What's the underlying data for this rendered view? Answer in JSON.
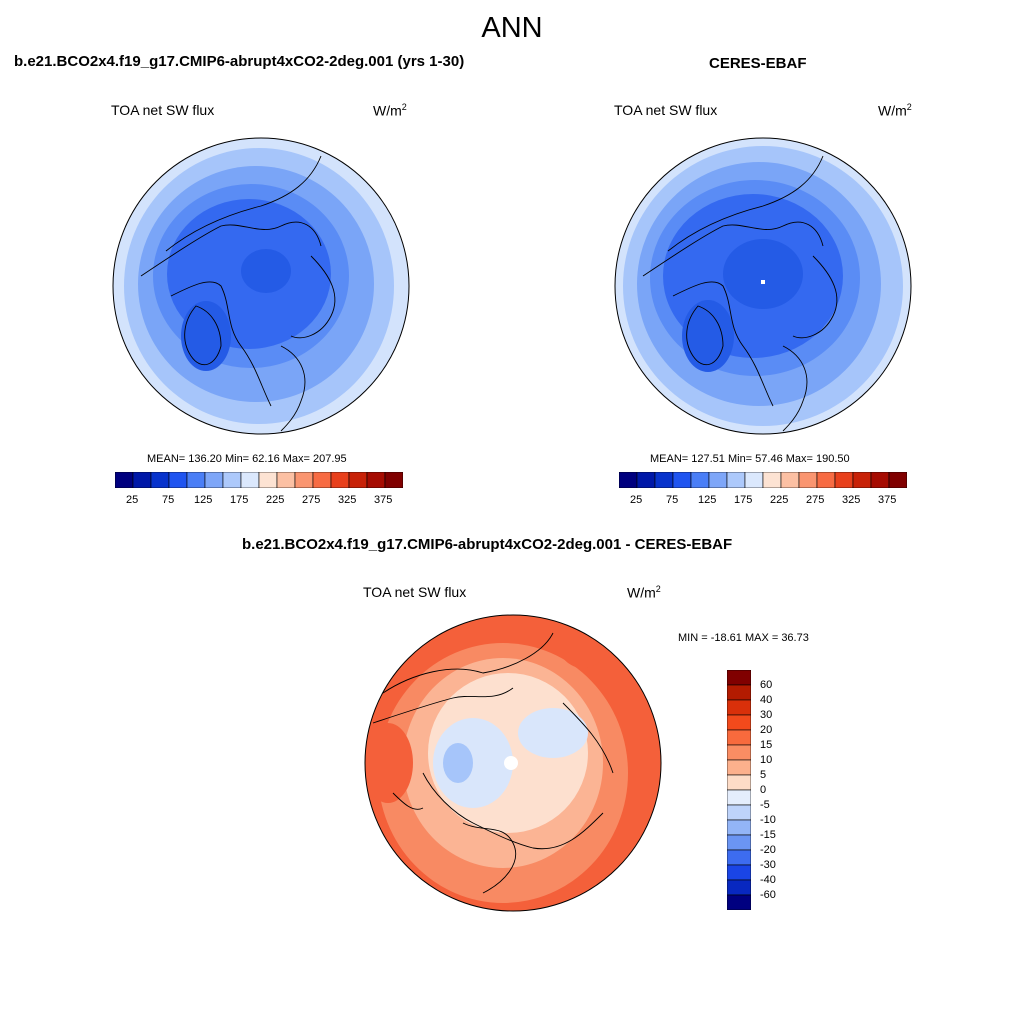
{
  "main_title": "ANN",
  "panels": [
    {
      "case_title": "b.e21.BCO2x4.f19_g17.CMIP6-abrupt4xCO2-2deg.001 (yrs 1-30)",
      "variable": "TOA net SW flux",
      "units_base": "W/m",
      "units_sup": "2",
      "stats": "MEAN= 136.20  Min=  62.16  Max= 207.95",
      "colorbar_ticks": [
        "25",
        "75",
        "125",
        "175",
        "225",
        "275",
        "325",
        "375"
      ],
      "fill_colors": [
        "#245be6",
        "#3469f0",
        "#5a8cf5",
        "#7aa5f7",
        "#a6c5fa",
        "#d3e3fc"
      ]
    },
    {
      "case_title": "CERES-EBAF",
      "variable": "TOA net SW flux",
      "units_base": "W/m",
      "units_sup": "2",
      "stats": "MEAN= 127.51  Min=  57.46  Max= 190.50",
      "colorbar_ticks": [
        "25",
        "75",
        "125",
        "175",
        "225",
        "275",
        "325",
        "375"
      ],
      "fill_colors": [
        "#245be6",
        "#3469f0",
        "#5a8cf5",
        "#7aa5f7",
        "#a6c5fa",
        "#d3e3fc"
      ]
    }
  ],
  "diff_panel": {
    "case_title": "b.e21.BCO2x4.f19_g17.CMIP6-abrupt4xCO2-2deg.001 - CERES-EBAF",
    "variable": "TOA net SW flux",
    "units_base": "W/m",
    "units_sup": "2",
    "stats": "MIN = -18.61 MAX =  36.73",
    "colorbar_ticks": [
      "60",
      "40",
      "30",
      "20",
      "15",
      "10",
      "5",
      "0",
      "-5",
      "-10",
      "-15",
      "-20",
      "-30",
      "-40",
      "-60"
    ],
    "fill_colors": [
      "#f4603a",
      "#f88a63",
      "#fbb494",
      "#fde0cf",
      "#d9e6fb",
      "#a6c5fa"
    ]
  },
  "colorbar_sequential": [
    "#00007f",
    "#0018a8",
    "#0833cc",
    "#1f54f0",
    "#4a7ef6",
    "#7ea6f8",
    "#adc9fb",
    "#dbe8fd",
    "#fde3d3",
    "#fcc0a3",
    "#fa9570",
    "#f76b43",
    "#e8401c",
    "#c82208",
    "#a60c02",
    "#800000"
  ],
  "colorbar_diverging": [
    "#800000",
    "#b31b01",
    "#d9300a",
    "#f24a1c",
    "#f86a3d",
    "#fa8d63",
    "#fcb08c",
    "#fddcc7",
    "#e4edfc",
    "#bed3fa",
    "#93b5f7",
    "#6b95f3",
    "#3d6cf0",
    "#1a45e6",
    "#0828c0",
    "#000080"
  ]
}
